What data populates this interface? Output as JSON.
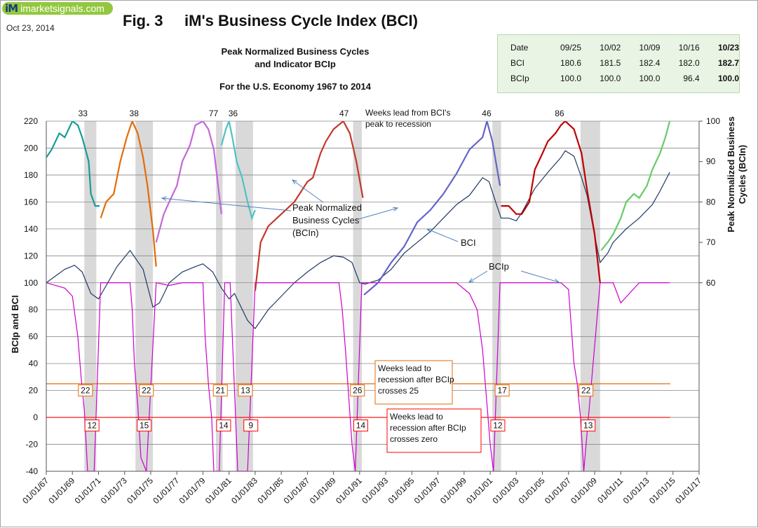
{
  "logo": {
    "mark": "iM",
    "text": "imarketsignals.com"
  },
  "date": "Oct 23, 2014",
  "title": "Fig. 3     iM's Business Cycle Index (BCI)",
  "subtitle_lines": [
    "Peak Normalized Business Cycles",
    "and Indicator BCIp",
    "For the U.S. Economy 1967  to 2014"
  ],
  "info_table": {
    "rows": [
      {
        "label": "Date",
        "values": [
          "09/25",
          "10/02",
          "10/09",
          "10/16",
          "10/23"
        ]
      },
      {
        "label": "BCI",
        "values": [
          "180.6",
          "181.5",
          "182.4",
          "182.0",
          "182.7"
        ]
      },
      {
        "label": "BCIp",
        "values": [
          "100.0",
          "100.0",
          "100.0",
          "96.4",
          "100.0"
        ]
      }
    ]
  },
  "colors": {
    "bci": "#1f3864",
    "bcip": "#cc00cc",
    "recession": "#d9d9d9",
    "line25": "#e26b0a",
    "line0": "#ff0000",
    "cycles": [
      "#1a9a9a",
      "#e36c09",
      "#c467d6",
      "#4bc4c4",
      "#c0392b",
      "#6464c8",
      "#c00000",
      "#66cc66"
    ]
  },
  "chart_data": {
    "type": "line",
    "ylabel": "BCIp  and  BCI",
    "y2label": "Peak Normalized Business Cycles (BCIn)",
    "ylim": [
      -40,
      220
    ],
    "yticks": [
      -40,
      -20,
      0,
      20,
      40,
      60,
      80,
      100,
      120,
      140,
      160,
      180,
      200,
      220
    ],
    "y2lim": [
      60,
      100
    ],
    "y2ticks": [
      60,
      70,
      80,
      90,
      100
    ],
    "y2tick_labels": [
      "60",
      "70",
      "80",
      "90",
      "100"
    ],
    "xlim": [
      "1967-01-01",
      "2017-01-01"
    ],
    "xtick_labels": [
      "01/01/67",
      "01/01/69",
      "01/01/71",
      "01/01/73",
      "01/01/75",
      "01/01/77",
      "01/01/79",
      "01/01/81",
      "01/01/83",
      "01/01/85",
      "01/01/87",
      "01/01/89",
      "01/01/91",
      "01/01/93",
      "01/01/95",
      "01/01/97",
      "01/01/99",
      "01/01/01",
      "01/01/03",
      "01/01/05",
      "01/01/07",
      "01/01/09",
      "01/01/11",
      "01/01/13",
      "01/01/15",
      "01/01/17"
    ],
    "grid": true,
    "recessions": [
      [
        "1969-12-01",
        "1970-11-01"
      ],
      [
        "1973-11-01",
        "1975-03-01"
      ],
      [
        "1980-01-01",
        "1980-07-01"
      ],
      [
        "1981-07-01",
        "1982-11-01"
      ],
      [
        "1990-07-01",
        "1991-03-01"
      ],
      [
        "2001-03-01",
        "2001-11-01"
      ],
      [
        "2007-12-01",
        "2009-06-01"
      ]
    ],
    "reference_lines": [
      {
        "y": 25,
        "color": "#e26b0a"
      },
      {
        "y": 0,
        "color": "#ff0000"
      }
    ],
    "series": [
      {
        "name": "BCI",
        "x": [
          "1967-01",
          "1968-06",
          "1969-03",
          "1969-10",
          "1970-06",
          "1971-01",
          "1971-06",
          "1972-06",
          "1973-06",
          "1974-06",
          "1975-03",
          "1975-09",
          "1976-06",
          "1977-06",
          "1978-06",
          "1979-01",
          "1979-10",
          "1980-06",
          "1981-01",
          "1981-06",
          "1982-06",
          "1983-01",
          "1984-01",
          "1985-01",
          "1986-01",
          "1987-01",
          "1988-01",
          "1989-01",
          "1989-10",
          "1990-06",
          "1991-01",
          "1991-06",
          "1992-06",
          "1993-06",
          "1994-06",
          "1995-06",
          "1996-06",
          "1997-06",
          "1998-06",
          "1999-06",
          "2000-06",
          "2000-12",
          "2001-06",
          "2001-11",
          "2002-06",
          "2003-01",
          "2003-06",
          "2004-06",
          "2005-06",
          "2006-06",
          "2006-10",
          "2007-06",
          "2008-01",
          "2008-06",
          "2009-01",
          "2009-06",
          "2010-01",
          "2010-06",
          "2011-06",
          "2012-06",
          "2013-06",
          "2014-01",
          "2014-10"
        ],
        "y": [
          100,
          110,
          113,
          108,
          92,
          88,
          95,
          112,
          124,
          110,
          82,
          85,
          100,
          108,
          112,
          114,
          108,
          96,
          88,
          92,
          72,
          66,
          80,
          90,
          100,
          108,
          115,
          120,
          119,
          115,
          100,
          99,
          102,
          110,
          122,
          130,
          138,
          148,
          158,
          165,
          178,
          175,
          160,
          148,
          148,
          146,
          152,
          170,
          182,
          193,
          198,
          194,
          178,
          165,
          135,
          115,
          122,
          130,
          140,
          148,
          158,
          168,
          182
        ]
      },
      {
        "name": "BCIp",
        "x": [
          "1967-01",
          "1968-06",
          "1969-01",
          "1969-06",
          "1969-09",
          "1969-12",
          "1970-03",
          "1970-09",
          "1971-03",
          "1972-06",
          "1973-06",
          "1973-08",
          "1973-10",
          "1974-01",
          "1974-04",
          "1974-09",
          "1975-06",
          "1976-06",
          "1977-06",
          "1979-01",
          "1979-03",
          "1979-06",
          "1979-09",
          "1979-11",
          "1980-04",
          "1980-09",
          "1981-02",
          "1981-04",
          "1981-06",
          "1981-09",
          "1982-06",
          "1983-01",
          "1983-06",
          "1984-06",
          "1986-06",
          "1988-06",
          "1989-06",
          "1989-09",
          "1989-12",
          "1990-03",
          "1990-06",
          "1990-09",
          "1991-03",
          "1992-06",
          "1994-06",
          "1996-06",
          "1998-06",
          "1999-06",
          "2000-01",
          "2000-06",
          "2000-09",
          "2001-01",
          "2001-04",
          "2001-10",
          "2002-06",
          "2004-06",
          "2006-06",
          "2007-01",
          "2007-06",
          "2007-09",
          "2007-12",
          "2008-03",
          "2009-06",
          "2010-06",
          "2011-01",
          "2012-06",
          "2014-10"
        ],
        "y": [
          100,
          96,
          90,
          60,
          30,
          5,
          -40,
          -40,
          100,
          100,
          100,
          80,
          40,
          10,
          -30,
          -40,
          100,
          98,
          100,
          100,
          60,
          25,
          0,
          -40,
          -40,
          100,
          100,
          60,
          20,
          -40,
          -40,
          100,
          100,
          100,
          100,
          100,
          100,
          80,
          50,
          15,
          -20,
          -40,
          100,
          100,
          100,
          100,
          100,
          92,
          80,
          50,
          20,
          -20,
          -40,
          100,
          100,
          100,
          100,
          95,
          40,
          25,
          0,
          -40,
          100,
          100,
          85,
          100,
          100
        ]
      }
    ],
    "cycles_bcin": [
      {
        "x": [
          "1967-01",
          "1967-06",
          "1968-01",
          "1968-06",
          "1969-01",
          "1969-06",
          "1969-10",
          "1970-04",
          "1970-06",
          "1970-10",
          "1971-02"
        ],
        "y": [
          91,
          93,
          97,
          96,
          100,
          99,
          96,
          90,
          82,
          79,
          79
        ]
      },
      {
        "x": [
          "1971-03",
          "1971-08",
          "1972-03",
          "1972-09",
          "1973-03",
          "1973-08",
          "1974-01",
          "1974-06",
          "1974-10",
          "1975-03",
          "1975-06"
        ],
        "y": [
          76,
          80,
          82,
          90,
          96,
          100,
          97,
          91,
          84,
          73,
          64
        ]
      },
      {
        "x": [
          "1975-06",
          "1976-01",
          "1976-06",
          "1977-01",
          "1977-06",
          "1978-01",
          "1978-06",
          "1979-01",
          "1979-06",
          "1979-11",
          "1980-06"
        ],
        "y": [
          70,
          77,
          80,
          84,
          90,
          94,
          99,
          100,
          98,
          93,
          77
        ]
      },
      {
        "x": [
          "1980-06",
          "1980-10",
          "1981-01",
          "1981-04",
          "1981-08",
          "1982-01",
          "1982-06",
          "1982-10",
          "1983-01"
        ],
        "y": [
          94,
          98,
          100,
          96,
          90,
          86,
          80,
          76,
          78
        ]
      },
      {
        "x": [
          "1983-01",
          "1983-06",
          "1984-01",
          "1985-01",
          "1986-01",
          "1987-01",
          "1987-06",
          "1988-01",
          "1988-06",
          "1989-01",
          "1989-10",
          "1990-04",
          "1990-10",
          "1991-04"
        ],
        "y": [
          58,
          70,
          74,
          77,
          80,
          85,
          86,
          92,
          95,
          98,
          100,
          97,
          90,
          81
        ]
      },
      {
        "x": [
          "1991-05",
          "1992-06",
          "1993-06",
          "1994-06",
          "1995-06",
          "1996-06",
          "1997-06",
          "1998-06",
          "1999-06",
          "2000-06",
          "2000-10",
          "2001-03",
          "2001-10"
        ],
        "y": [
          57,
          60,
          65,
          69,
          75,
          78,
          82,
          87,
          93,
          96,
          100,
          95,
          84
        ]
      },
      {
        "x": [
          "2001-11",
          "2002-06",
          "2003-01",
          "2003-06",
          "2004-01",
          "2004-06",
          "2005-01",
          "2005-06",
          "2006-01",
          "2006-06",
          "2006-10",
          "2007-06",
          "2008-01",
          "2008-06",
          "2009-01",
          "2009-06"
        ],
        "y": [
          79,
          79,
          77,
          77,
          80,
          88,
          92,
          95,
          97,
          99,
          100,
          98,
          92,
          83,
          72,
          60
        ]
      },
      {
        "x": [
          "2009-07",
          "2010-01",
          "2010-06",
          "2011-01",
          "2011-06",
          "2012-01",
          "2012-06",
          "2013-01",
          "2013-06",
          "2014-01",
          "2014-06",
          "2014-10"
        ],
        "y": [
          68,
          70,
          72,
          76,
          80,
          82,
          81,
          84,
          88,
          92,
          96,
          100
        ]
      }
    ],
    "cycle_leads": [
      {
        "label": "33",
        "x": "1969-12"
      },
      {
        "label": "38",
        "x": "1973-11"
      },
      {
        "label": "77",
        "x": "1979-12"
      },
      {
        "label": "36",
        "x": "1981-06"
      },
      {
        "label": "47",
        "x": "1989-12"
      },
      {
        "label": "46",
        "x": "2000-11"
      },
      {
        "label": "86",
        "x": "2006-06"
      }
    ],
    "lead25_boxes": [
      {
        "label": "22",
        "x": "1970-01"
      },
      {
        "label": "22",
        "x": "1974-09"
      },
      {
        "label": "21",
        "x": "1980-05"
      },
      {
        "label": "13",
        "x": "1982-04"
      },
      {
        "label": "26",
        "x": "1990-11"
      },
      {
        "label": "17",
        "x": "2001-12"
      },
      {
        "label": "22",
        "x": "2008-05"
      }
    ],
    "lead0_boxes": [
      {
        "label": "12",
        "x": "1970-07"
      },
      {
        "label": "15",
        "x": "1974-07"
      },
      {
        "label": "14",
        "x": "1980-08"
      },
      {
        "label": "9",
        "x": "1982-09"
      },
      {
        "label": "14",
        "x": "1991-02"
      },
      {
        "label": "12",
        "x": "2001-08"
      },
      {
        "label": "13",
        "x": "2008-07"
      }
    ],
    "annotations": {
      "cycles_label": [
        "Peak Normalized",
        "Business Cycles",
        "(BCIn)"
      ],
      "bci_label": "BCI",
      "bcip_label": "BCIp",
      "weeks_lead_peak": [
        "Weeks lead from BCI's",
        "peak to recession"
      ],
      "weeks_lead_25": [
        "Weeks lead to",
        "recession after BCIp",
        "crosses 25"
      ],
      "weeks_lead_0": [
        "Weeks lead  to",
        "recession after BCIp",
        "crosses zero"
      ]
    }
  }
}
